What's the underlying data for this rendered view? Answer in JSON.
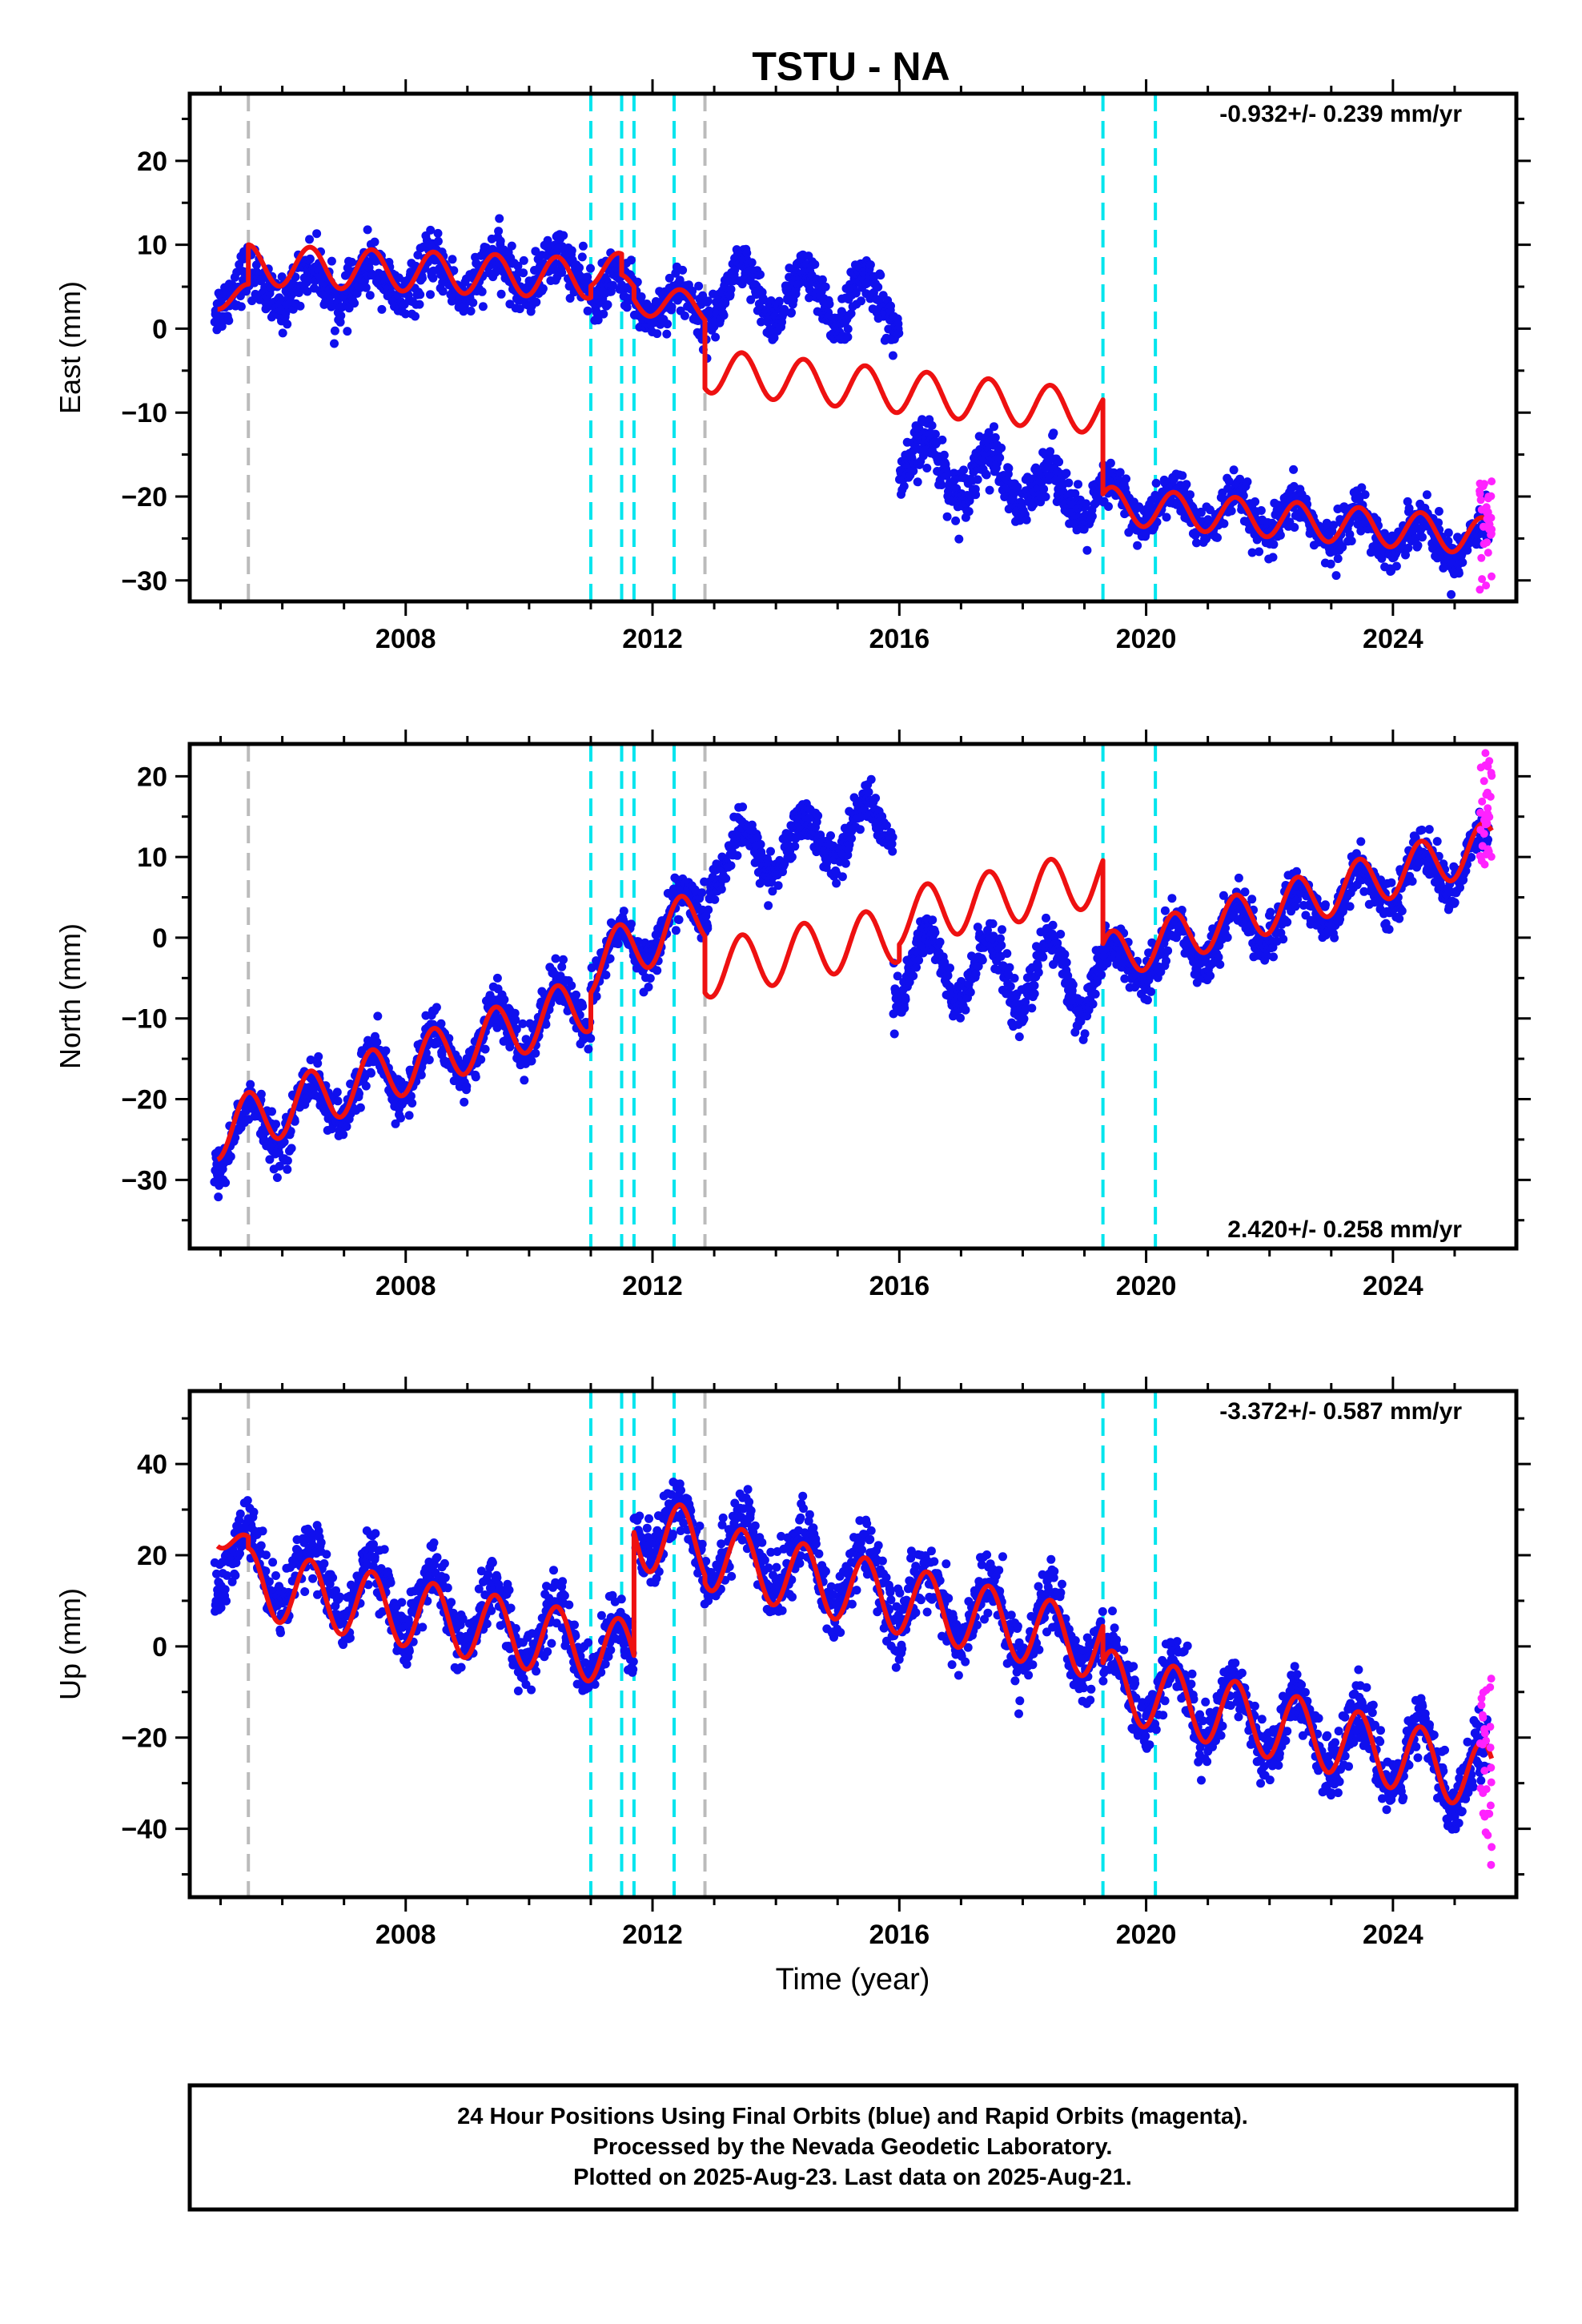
{
  "title": "TSTU - NA",
  "xlabel": "Time (year)",
  "caption": {
    "line1": "24 Hour Positions Using Final Orbits (blue) and Rapid Orbits (magenta).",
    "line2": "Processed by the Nevada Geodetic Laboratory.",
    "line3": "Plotted on 2025-Aug-23. Last data on 2025-Aug-21."
  },
  "colors": {
    "final_points": "#1010ee",
    "rapid_points": "#ff22ff",
    "model": "#ee1111",
    "equipment_change": "#00e5ee",
    "other_step": "#bbbbbb"
  },
  "chart_data": [
    {
      "type": "scatter",
      "panel": "east",
      "ylabel": "East (mm)",
      "rate": "-0.932+/- 0.239 mm/yr",
      "rate_position": "top-right",
      "xlim": [
        2004.5,
        2026.0
      ],
      "ylim": [
        -32.5,
        28
      ],
      "xticks": [
        2008,
        2012,
        2016,
        2020,
        2024
      ],
      "yticks": [
        -30,
        -20,
        -10,
        0,
        10,
        20
      ],
      "step_lines_cyan": [
        2011.0,
        2011.5,
        2011.7,
        2012.35,
        2019.3,
        2020.15
      ],
      "step_lines_gray": [
        2005.45,
        2012.85
      ],
      "model_segments": [
        {
          "x0": 2004.95,
          "x1": 2005.45,
          "base0": 3.8,
          "base1": 3.8,
          "amp": 1.5
        },
        {
          "x0": 2005.45,
          "x1": 2011.0,
          "base0": 7.6,
          "base1": 6.0,
          "amp": 2.4
        },
        {
          "x0": 2011.0,
          "x1": 2011.5,
          "base0": 7.0,
          "base1": 7.0,
          "amp": 2.0
        },
        {
          "x0": 2011.5,
          "x1": 2011.7,
          "base0": 5.0,
          "base1": 5.0,
          "amp": 1.5
        },
        {
          "x0": 2011.7,
          "x1": 2012.85,
          "base0": 3.5,
          "base1": 2.5,
          "amp": 1.8
        },
        {
          "x0": 2012.85,
          "x1": 2019.3,
          "base0": -5.0,
          "base1": -10.0,
          "amp": 2.6
        },
        {
          "x0": 2019.3,
          "x1": 2025.6,
          "base0": -21.0,
          "base1": -24.8,
          "amp": 2.2
        }
      ],
      "final_series": [
        {
          "x0": 2004.9,
          "x1": 2011.0,
          "base0": 4.5,
          "base1": 7.0,
          "amp": 2.2,
          "noise": 2.8
        },
        {
          "x0": 2011.0,
          "x1": 2012.9,
          "base0": 5.0,
          "base1": 2.0,
          "amp": 2.0,
          "noise": 2.6
        },
        {
          "x0": 2012.9,
          "x1": 2016.0,
          "base0": 4.5,
          "base1": 3.0,
          "amp": 3.0,
          "noise": 2.6
        },
        {
          "x0": 2016.0,
          "x1": 2019.3,
          "base0": -15.5,
          "base1": -20.5,
          "amp": 3.0,
          "noise": 2.8
        },
        {
          "x0": 2019.3,
          "x1": 2025.55,
          "base0": -20.5,
          "base1": -25.5,
          "amp": 2.2,
          "noise": 2.4
        }
      ],
      "rapid_x": [
        2025.4,
        2025.6
      ],
      "rapid_y_range": [
        -31.5,
        -18
      ]
    },
    {
      "type": "scatter",
      "panel": "north",
      "ylabel": "North (mm)",
      "rate": "2.420+/- 0.258 mm/yr",
      "rate_position": "bottom-right",
      "xlim": [
        2004.5,
        2026.0
      ],
      "ylim": [
        -38.5,
        24
      ],
      "xticks": [
        2008,
        2012,
        2016,
        2020,
        2024
      ],
      "yticks": [
        -30,
        -20,
        -10,
        0,
        10,
        20
      ],
      "step_lines_cyan": [
        2011.0,
        2011.5,
        2011.7,
        2012.35,
        2019.3,
        2020.15
      ],
      "step_lines_gray": [
        2005.45,
        2012.85
      ],
      "model_segments": [
        {
          "x0": 2004.95,
          "x1": 2011.0,
          "base0": -24.0,
          "base1": -8.0,
          "amp": 3.5
        },
        {
          "x0": 2011.0,
          "x1": 2012.85,
          "base0": -3.5,
          "base1": 3.0,
          "amp": 3.5
        },
        {
          "x0": 2012.85,
          "x1": 2016.0,
          "base0": -4.0,
          "base1": 0.5,
          "amp": 3.5
        },
        {
          "x0": 2016.0,
          "x1": 2019.3,
          "base0": 2.5,
          "base1": 7.5,
          "amp": 3.5
        },
        {
          "x0": 2019.3,
          "x1": 2025.6,
          "base0": -2.5,
          "base1": 11.5,
          "amp": 3.0
        }
      ],
      "final_series": [
        {
          "x0": 2004.9,
          "x1": 2011.0,
          "base0": -25.5,
          "base1": -7.5,
          "amp": 3.5,
          "noise": 2.6
        },
        {
          "x0": 2011.0,
          "x1": 2012.9,
          "base0": -4.0,
          "base1": 4.5,
          "amp": 3.0,
          "noise": 2.4
        },
        {
          "x0": 2012.9,
          "x1": 2015.9,
          "base0": 9.0,
          "base1": 14.5,
          "amp": 3.0,
          "noise": 2.4
        },
        {
          "x0": 2015.9,
          "x1": 2019.3,
          "base0": -3.5,
          "base1": -5.0,
          "amp": 4.5,
          "noise": 2.6
        },
        {
          "x0": 2019.3,
          "x1": 2025.55,
          "base0": -4.0,
          "base1": 10.5,
          "amp": 3.0,
          "noise": 2.4
        }
      ],
      "rapid_x": [
        2025.4,
        2025.6
      ],
      "rapid_y_range": [
        8,
        23
      ]
    },
    {
      "type": "scatter",
      "panel": "up",
      "ylabel": "Up (mm)",
      "rate": "-3.372+/- 0.587 mm/yr",
      "rate_position": "top-right",
      "xlim": [
        2004.5,
        2026.0
      ],
      "ylim": [
        -55,
        56
      ],
      "xticks": [
        2008,
        2012,
        2016,
        2020,
        2024
      ],
      "yticks": [
        -40,
        -20,
        0,
        20,
        40
      ],
      "step_lines_cyan": [
        2011.0,
        2011.5,
        2011.7,
        2012.35,
        2019.3,
        2020.15
      ],
      "step_lines_gray": [
        2005.45,
        2012.85
      ],
      "model_segments": [
        {
          "x0": 2004.95,
          "x1": 2005.45,
          "base0": 26.0,
          "base1": 20.0,
          "amp": 4.0
        },
        {
          "x0": 2005.45,
          "x1": 2011.7,
          "base0": 14.0,
          "base1": -2.0,
          "amp": 7.5
        },
        {
          "x0": 2011.7,
          "x1": 2012.85,
          "base0": 25.0,
          "base1": 22.0,
          "amp": 8.0
        },
        {
          "x0": 2012.85,
          "x1": 2019.3,
          "base0": 20.0,
          "base1": 0.0,
          "amp": 7.5
        },
        {
          "x0": 2019.3,
          "x1": 2025.6,
          "base0": -8.0,
          "base1": -29.0,
          "amp": 7.5
        }
      ],
      "final_series": [
        {
          "x0": 2004.9,
          "x1": 2011.7,
          "base0": 20.0,
          "base1": -2.0,
          "amp": 7.5,
          "noise": 6.0
        },
        {
          "x0": 2011.7,
          "x1": 2019.3,
          "base0": 27.0,
          "base1": 0.0,
          "amp": 7.5,
          "noise": 6.5
        },
        {
          "x0": 2019.3,
          "x1": 2025.55,
          "base0": -7.0,
          "base1": -29.0,
          "amp": 7.5,
          "noise": 6.0
        }
      ],
      "rapid_x": [
        2025.4,
        2025.6
      ],
      "rapid_y_range": [
        -49,
        -5
      ]
    }
  ]
}
